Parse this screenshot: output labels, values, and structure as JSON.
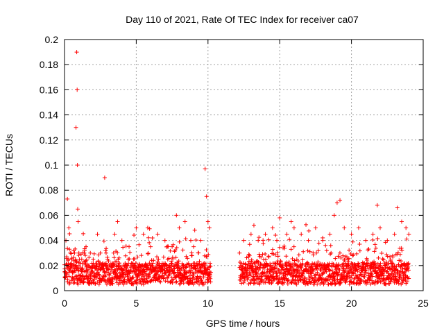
{
  "chart_data": {
    "type": "scatter",
    "title": "Day 110 of 2021, Rate Of TEC Index for receiver ca07",
    "xlabel": "GPS time / hours",
    "ylabel": "ROTI / TECUs",
    "xlim": [
      0,
      25
    ],
    "ylim": [
      0,
      0.2
    ],
    "x_ticks": [
      0,
      5,
      10,
      15,
      20,
      25
    ],
    "x_tick_labels": [
      "0",
      "5",
      "10",
      "15",
      "20",
      "25"
    ],
    "y_ticks": [
      0,
      0.02,
      0.04,
      0.06,
      0.08,
      0.1,
      0.12,
      0.14,
      0.16,
      0.18,
      0.2
    ],
    "y_tick_labels": [
      "0",
      "0.02",
      "0.04",
      "0.06",
      "0.08",
      "0.1",
      "0.12",
      "0.14",
      "0.16",
      "0.18",
      "0.2"
    ],
    "grid": true,
    "marker": "+",
    "color": "#ff0000",
    "data_gap_hours": [
      10.2,
      12.2
    ],
    "series": [
      {
        "name": "ROTI",
        "x": [
          0.0,
          0.1,
          0.2,
          0.3,
          0.4,
          0.5,
          0.6,
          0.7,
          0.8,
          0.85,
          0.88,
          0.9,
          0.92,
          0.95,
          1.0,
          1.2,
          1.5,
          1.8,
          2.0,
          2.5,
          2.8,
          2.9,
          3.0,
          3.5,
          3.7,
          4.0,
          4.5,
          5.0,
          5.5,
          5.8,
          6.0,
          6.5,
          7.0,
          7.5,
          7.8,
          8.0,
          8.4,
          8.8,
          9.0,
          9.5,
          9.8,
          9.9,
          10.0,
          10.1,
          12.2,
          12.5,
          13.0,
          13.2,
          13.5,
          14.0,
          14.5,
          14.8,
          15.0,
          15.5,
          15.8,
          16.0,
          16.5,
          17.0,
          17.5,
          18.0,
          18.5,
          18.8,
          19.0,
          19.2,
          19.5,
          20.0,
          20.5,
          21.0,
          21.5,
          21.8,
          22.0,
          22.5,
          23.0,
          23.2,
          23.5,
          23.8,
          24.0
        ],
        "y": [
          0.015,
          0.04,
          0.073,
          0.05,
          0.03,
          0.025,
          0.02,
          0.03,
          0.13,
          0.19,
          0.16,
          0.1,
          0.065,
          0.055,
          0.03,
          0.025,
          0.035,
          0.03,
          0.025,
          0.03,
          0.09,
          0.03,
          0.025,
          0.045,
          0.055,
          0.04,
          0.035,
          0.05,
          0.045,
          0.05,
          0.035,
          0.045,
          0.04,
          0.035,
          0.06,
          0.05,
          0.055,
          0.04,
          0.035,
          0.04,
          0.097,
          0.075,
          0.055,
          0.05,
          0.03,
          0.04,
          0.045,
          0.052,
          0.04,
          0.045,
          0.05,
          0.04,
          0.058,
          0.045,
          0.055,
          0.05,
          0.045,
          0.04,
          0.05,
          0.04,
          0.045,
          0.06,
          0.07,
          0.072,
          0.05,
          0.045,
          0.05,
          0.04,
          0.045,
          0.068,
          0.05,
          0.04,
          0.045,
          0.066,
          0.055,
          0.05,
          0.045
        ]
      }
    ]
  }
}
